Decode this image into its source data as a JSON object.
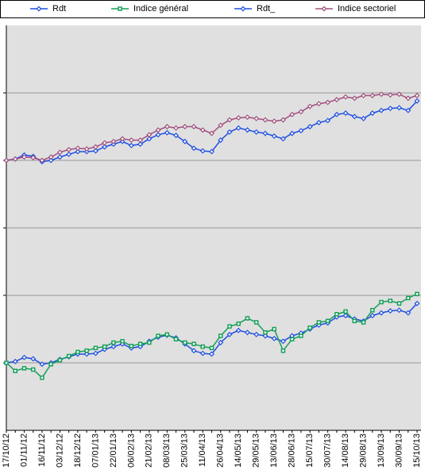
{
  "chart_data": {
    "type": "line",
    "categories": [
      "17/10/12",
      null,
      "01/11/12",
      null,
      "16/11/12",
      null,
      "03/12/12",
      null,
      "18/12/12",
      null,
      "07/01/13",
      null,
      "22/01/13",
      null,
      "06/02/13",
      null,
      "21/02/13",
      null,
      "08/03/13",
      null,
      "25/03/13",
      null,
      "11/04/13",
      null,
      "26/04/13",
      null,
      "14/05/13",
      null,
      "29/05/13",
      null,
      "13/06/13",
      null,
      "28/06/13",
      null,
      "15/07/13",
      null,
      "30/07/13",
      null,
      "14/08/13",
      null,
      "29/08/13",
      null,
      "13/09/13",
      null,
      "30/09/13",
      null,
      "15/10/13"
    ],
    "series": [
      {
        "name": "Rdt",
        "color": "#1f4fe0",
        "marker": "diamond",
        "values": [
          0,
          0.02,
          0.08,
          0.06,
          -0.02,
          0,
          0.05,
          0.09,
          0.13,
          0.13,
          0.14,
          0.2,
          0.24,
          0.28,
          0.22,
          0.24,
          0.32,
          0.38,
          0.41,
          0.37,
          0.28,
          0.18,
          0.14,
          0.13,
          0.3,
          0.42,
          0.48,
          0.45,
          0.42,
          0.4,
          0.36,
          0.32,
          0.4,
          0.44,
          0.5,
          0.56,
          0.59,
          0.68,
          0.7,
          0.65,
          0.62,
          0.7,
          0.74,
          0.77,
          0.78,
          0.74,
          0.88
        ]
      },
      {
        "name": "Indice général",
        "color": "#16a05a",
        "marker": "square",
        "values": [
          0,
          -0.12,
          -0.08,
          -0.1,
          -0.22,
          -0.02,
          0.04,
          0.1,
          0.16,
          0.18,
          0.22,
          0.24,
          0.3,
          0.32,
          0.25,
          0.28,
          0.3,
          0.4,
          0.42,
          0.35,
          0.3,
          0.28,
          0.24,
          0.22,
          0.4,
          0.54,
          0.58,
          0.66,
          0.6,
          0.45,
          0.5,
          0.18,
          0.35,
          0.4,
          0.52,
          0.6,
          0.62,
          0.72,
          0.76,
          0.62,
          0.6,
          0.78,
          0.9,
          0.92,
          0.88,
          0.96,
          1.02
        ]
      },
      {
        "name": "Rdt_",
        "color": "#1f4fe0",
        "marker": "diamond",
        "values": [
          3,
          3.02,
          3.08,
          3.06,
          2.98,
          3,
          3.05,
          3.09,
          3.13,
          3.13,
          3.14,
          3.2,
          3.24,
          3.28,
          3.22,
          3.24,
          3.32,
          3.38,
          3.41,
          3.37,
          3.28,
          3.18,
          3.14,
          3.13,
          3.3,
          3.42,
          3.48,
          3.45,
          3.42,
          3.4,
          3.36,
          3.32,
          3.4,
          3.44,
          3.5,
          3.56,
          3.59,
          3.68,
          3.7,
          3.65,
          3.62,
          3.7,
          3.74,
          3.77,
          3.78,
          3.74,
          3.88
        ]
      },
      {
        "name": "Indice sectoriel",
        "color": "#a0507e",
        "marker": "diamond",
        "values": [
          3,
          3.02,
          3.05,
          3.04,
          3,
          3.05,
          3.12,
          3.16,
          3.18,
          3.17,
          3.2,
          3.26,
          3.28,
          3.32,
          3.3,
          3.3,
          3.38,
          3.45,
          3.5,
          3.48,
          3.5,
          3.5,
          3.45,
          3.4,
          3.52,
          3.6,
          3.63,
          3.64,
          3.62,
          3.6,
          3.58,
          3.6,
          3.68,
          3.72,
          3.8,
          3.84,
          3.86,
          3.9,
          3.94,
          3.92,
          3.96,
          3.96,
          3.98,
          3.97,
          3.98,
          3.92,
          3.96
        ]
      }
    ],
    "ylim": [
      -1,
      5
    ],
    "yticks": [
      0,
      1,
      2,
      3,
      4
    ],
    "grid": true,
    "legend": "top"
  }
}
